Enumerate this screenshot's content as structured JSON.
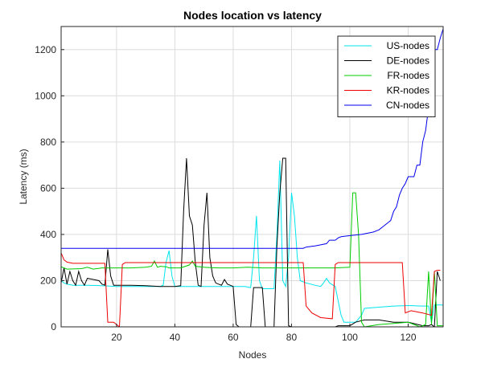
{
  "chart_data": {
    "type": "line",
    "title": "Nodes location vs latency",
    "xlabel": "Nodes",
    "ylabel": "Latency (ms)",
    "xlim": [
      1,
      132
    ],
    "ylim": [
      0,
      1300
    ],
    "xticks": [
      20,
      40,
      60,
      80,
      100,
      120
    ],
    "yticks": [
      0,
      200,
      400,
      600,
      800,
      1000,
      1200
    ],
    "grid": true,
    "legend_position": "top-right",
    "series": [
      {
        "name": "US-nodes",
        "color": "#00e5ee",
        "points": [
          [
            1,
            200
          ],
          [
            2,
            190
          ],
          [
            3,
            185
          ],
          [
            5,
            180
          ],
          [
            10,
            180
          ],
          [
            15,
            178
          ],
          [
            20,
            175
          ],
          [
            25,
            175
          ],
          [
            30,
            175
          ],
          [
            35,
            175
          ],
          [
            36,
            180
          ],
          [
            37,
            280
          ],
          [
            38,
            330
          ],
          [
            39,
            220
          ],
          [
            40,
            175
          ],
          [
            45,
            175
          ],
          [
            50,
            175
          ],
          [
            55,
            175
          ],
          [
            60,
            175
          ],
          [
            64,
            175
          ],
          [
            66,
            170
          ],
          [
            67,
            300
          ],
          [
            68,
            480
          ],
          [
            69,
            200
          ],
          [
            70,
            165
          ],
          [
            74,
            165
          ],
          [
            75,
            400
          ],
          [
            76,
            720
          ],
          [
            77,
            200
          ],
          [
            78,
            175
          ],
          [
            79,
            300
          ],
          [
            80,
            580
          ],
          [
            81,
            480
          ],
          [
            82,
            300
          ],
          [
            83,
            200
          ],
          [
            85,
            190
          ],
          [
            88,
            180
          ],
          [
            90,
            175
          ],
          [
            91,
            190
          ],
          [
            92,
            210
          ],
          [
            93,
            190
          ],
          [
            95,
            175
          ],
          [
            97,
            50
          ],
          [
            98,
            20
          ],
          [
            100,
            20
          ],
          [
            102,
            20
          ],
          [
            104,
            50
          ],
          [
            105,
            80
          ],
          [
            110,
            85
          ],
          [
            115,
            90
          ],
          [
            120,
            92
          ],
          [
            125,
            90
          ],
          [
            127,
            90
          ],
          [
            128,
            20
          ],
          [
            129,
            95
          ],
          [
            130,
            95
          ],
          [
            132,
            95
          ]
        ]
      },
      {
        "name": "DE-nodes",
        "color": "#000000",
        "points": [
          [
            1,
            190
          ],
          [
            2,
            255
          ],
          [
            3,
            185
          ],
          [
            4,
            240
          ],
          [
            5,
            200
          ],
          [
            6,
            180
          ],
          [
            7,
            240
          ],
          [
            8,
            200
          ],
          [
            9,
            180
          ],
          [
            10,
            210
          ],
          [
            12,
            205
          ],
          [
            14,
            200
          ],
          [
            15,
            185
          ],
          [
            16,
            180
          ],
          [
            17,
            335
          ],
          [
            18,
            220
          ],
          [
            19,
            180
          ],
          [
            20,
            180
          ],
          [
            25,
            180
          ],
          [
            30,
            178
          ],
          [
            35,
            175
          ],
          [
            40,
            175
          ],
          [
            42,
            178
          ],
          [
            43,
            500
          ],
          [
            44,
            730
          ],
          [
            45,
            480
          ],
          [
            46,
            440
          ],
          [
            47,
            280
          ],
          [
            48,
            180
          ],
          [
            49,
            175
          ],
          [
            50,
            440
          ],
          [
            51,
            580
          ],
          [
            52,
            300
          ],
          [
            53,
            220
          ],
          [
            54,
            190
          ],
          [
            55,
            185
          ],
          [
            56,
            180
          ],
          [
            57,
            205
          ],
          [
            58,
            185
          ],
          [
            59,
            180
          ],
          [
            60,
            175
          ],
          [
            61,
            10
          ],
          [
            62,
            0
          ],
          [
            66,
            0
          ],
          [
            67,
            170
          ],
          [
            70,
            170
          ],
          [
            71,
            0
          ],
          [
            74,
            0
          ],
          [
            75,
            350
          ],
          [
            76,
            580
          ],
          [
            77,
            730
          ],
          [
            78,
            730
          ],
          [
            79,
            5
          ],
          [
            80,
            0
          ],
          [
            95,
            0
          ],
          [
            96,
            5
          ],
          [
            97,
            5
          ],
          [
            100,
            5
          ],
          [
            102,
            20
          ],
          [
            105,
            30
          ],
          [
            110,
            30
          ],
          [
            115,
            20
          ],
          [
            120,
            20
          ],
          [
            125,
            5
          ],
          [
            127,
            5
          ],
          [
            128,
            10
          ],
          [
            129,
            0
          ],
          [
            130,
            240
          ],
          [
            131,
            200
          ]
        ]
      },
      {
        "name": "FR-nodes",
        "color": "#00cc00",
        "points": [
          [
            1,
            260
          ],
          [
            3,
            250
          ],
          [
            8,
            252
          ],
          [
            10,
            258
          ],
          [
            12,
            250
          ],
          [
            15,
            255
          ],
          [
            20,
            255
          ],
          [
            25,
            255
          ],
          [
            30,
            258
          ],
          [
            32,
            262
          ],
          [
            33,
            285
          ],
          [
            34,
            258
          ],
          [
            35,
            262
          ],
          [
            37,
            260
          ],
          [
            38,
            255
          ],
          [
            42,
            255
          ],
          [
            45,
            268
          ],
          [
            46,
            285
          ],
          [
            47,
            262
          ],
          [
            50,
            258
          ],
          [
            55,
            255
          ],
          [
            60,
            255
          ],
          [
            65,
            258
          ],
          [
            70,
            255
          ],
          [
            75,
            255
          ],
          [
            80,
            255
          ],
          [
            85,
            255
          ],
          [
            90,
            255
          ],
          [
            95,
            255
          ],
          [
            100,
            258
          ],
          [
            101,
            580
          ],
          [
            102,
            580
          ],
          [
            103,
            400
          ],
          [
            104,
            20
          ],
          [
            105,
            0
          ],
          [
            110,
            10
          ],
          [
            115,
            15
          ],
          [
            120,
            20
          ],
          [
            124,
            0
          ],
          [
            126,
            10
          ],
          [
            127,
            240
          ],
          [
            128,
            10
          ],
          [
            129,
            240
          ],
          [
            130,
            5
          ],
          [
            132,
            5
          ]
        ]
      },
      {
        "name": "KR-nodes",
        "color": "#ee0000",
        "points": [
          [
            1,
            320
          ],
          [
            2,
            290
          ],
          [
            3,
            280
          ],
          [
            5,
            275
          ],
          [
            10,
            275
          ],
          [
            15,
            275
          ],
          [
            16,
            275
          ],
          [
            17,
            20
          ],
          [
            19,
            20
          ],
          [
            20,
            10
          ],
          [
            21,
            0
          ],
          [
            22,
            270
          ],
          [
            23,
            278
          ],
          [
            30,
            278
          ],
          [
            35,
            278
          ],
          [
            40,
            278
          ],
          [
            45,
            278
          ],
          [
            50,
            278
          ],
          [
            55,
            278
          ],
          [
            60,
            278
          ],
          [
            65,
            278
          ],
          [
            70,
            278
          ],
          [
            75,
            278
          ],
          [
            80,
            278
          ],
          [
            84,
            278
          ],
          [
            85,
            90
          ],
          [
            87,
            60
          ],
          [
            90,
            40
          ],
          [
            94,
            35
          ],
          [
            95,
            270
          ],
          [
            96,
            278
          ],
          [
            100,
            278
          ],
          [
            105,
            278
          ],
          [
            110,
            278
          ],
          [
            115,
            278
          ],
          [
            118,
            278
          ],
          [
            119,
            60
          ],
          [
            121,
            70
          ],
          [
            125,
            60
          ],
          [
            128,
            50
          ],
          [
            129,
            240
          ],
          [
            130,
            245
          ],
          [
            131,
            245
          ]
        ]
      },
      {
        "name": "CN-nodes",
        "color": "#0000ee",
        "points": [
          [
            1,
            340
          ],
          [
            10,
            340
          ],
          [
            20,
            340
          ],
          [
            30,
            340
          ],
          [
            40,
            340
          ],
          [
            50,
            340
          ],
          [
            60,
            340
          ],
          [
            70,
            340
          ],
          [
            80,
            340
          ],
          [
            84,
            340
          ],
          [
            85,
            345
          ],
          [
            88,
            350
          ],
          [
            90,
            355
          ],
          [
            92,
            360
          ],
          [
            93,
            375
          ],
          [
            95,
            375
          ],
          [
            96,
            385
          ],
          [
            97,
            390
          ],
          [
            100,
            395
          ],
          [
            104,
            400
          ],
          [
            108,
            410
          ],
          [
            110,
            420
          ],
          [
            112,
            440
          ],
          [
            113,
            450
          ],
          [
            114,
            460
          ],
          [
            115,
            500
          ],
          [
            116,
            520
          ],
          [
            117,
            570
          ],
          [
            118,
            600
          ],
          [
            119,
            620
          ],
          [
            120,
            650
          ],
          [
            122,
            650
          ],
          [
            123,
            700
          ],
          [
            124,
            700
          ],
          [
            125,
            800
          ],
          [
            126,
            850
          ],
          [
            127,
            950
          ],
          [
            128,
            1100
          ],
          [
            129,
            1200
          ],
          [
            130,
            1200
          ],
          [
            131,
            1250
          ],
          [
            132,
            1290
          ]
        ]
      }
    ]
  }
}
